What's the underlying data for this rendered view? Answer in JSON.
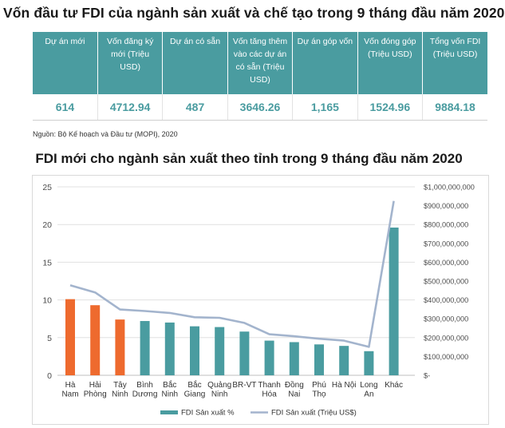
{
  "title": "Vốn đầu tư FDI của ngành sản xuất và chế tạo trong 9 tháng đầu năm 2020",
  "table": {
    "headers": [
      "Dự án mới",
      "Vốn đăng ký mới (Triệu USD)",
      "Dự án có sẵn",
      "Vốn tăng thêm vào các dự án có sẵn (Triệu USD)",
      "Dự án góp vốn",
      "Vốn đóng góp (Triệu USD)",
      "Tổng vốn FDI (Triệu USD)"
    ],
    "values": [
      "614",
      "4712.94",
      "487",
      "3646.26",
      "1,165",
      "1524.96",
      "9884.18"
    ]
  },
  "source": "Nguồn: Bộ Kế hoạch và Đầu tư (MOPI), 2020",
  "chart_title": "FDI mới cho ngành sản xuất theo tỉnh trong 9 tháng đầu năm 2020",
  "colors": {
    "teal": "#4a9ca0",
    "orange": "#ee6a2e",
    "line": "#a3b4cd",
    "grid": "#e0e0e0",
    "axis": "#4d4d4d"
  },
  "chart_data": {
    "type": "bar",
    "categories": [
      [
        "Hà",
        "Nam"
      ],
      [
        "Hải",
        "Phòng"
      ],
      [
        "Tây",
        "Ninh"
      ],
      [
        "Bình",
        "Dương"
      ],
      [
        "Bắc",
        "Ninh"
      ],
      [
        "Bắc",
        "Giang"
      ],
      [
        "Quảng",
        "Ninh"
      ],
      [
        "BR-VT"
      ],
      [
        "Thanh",
        "Hóa"
      ],
      [
        "Đồng",
        "Nai"
      ],
      [
        "Phú",
        "Thọ"
      ],
      [
        "Hà Nội"
      ],
      [
        "Long",
        "An"
      ],
      [
        "Khác"
      ]
    ],
    "series": [
      {
        "name": "FDI Sản xuất %",
        "type": "bar",
        "axis": "left",
        "values": [
          10.1,
          9.3,
          7.4,
          7.2,
          7.0,
          6.5,
          6.4,
          5.8,
          4.6,
          4.4,
          4.1,
          3.9,
          3.2,
          19.6
        ],
        "highlight_count": 3
      },
      {
        "name": "FDI Sản xuất (Triệu US$)",
        "type": "line",
        "axis": "right",
        "values": [
          478000000,
          440000000,
          349000000,
          341000000,
          331000000,
          308000000,
          305000000,
          278000000,
          218000000,
          207000000,
          194000000,
          184000000,
          151000000,
          925000000
        ]
      }
    ],
    "y_left": {
      "min": 0,
      "max": 25,
      "ticks": [
        "0",
        "5",
        "10",
        "15",
        "20",
        "25"
      ]
    },
    "y_right": {
      "min": 0,
      "max": 1000000000,
      "ticks": [
        "$-",
        "$100,000,000",
        "$200,000,000",
        "$300,000,000",
        "$400,000,000",
        "$500,000,000",
        "$600,000,000",
        "$700,000,000",
        "$800,000,000",
        "$900,000,000",
        "$1,000,000,000"
      ]
    },
    "grid": true,
    "legend_position": "bottom"
  }
}
